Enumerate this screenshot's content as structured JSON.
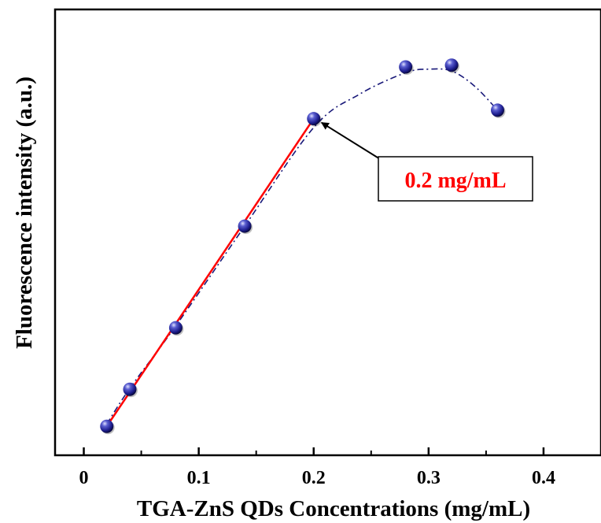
{
  "chart_data": {
    "type": "scatter",
    "title": "",
    "xlabel": "TGA-ZnS QDs Concentrations (mg/mL)",
    "ylabel": "Fluorescence intensity (a.u.)",
    "xlim": [
      -0.025,
      0.45
    ],
    "ylim": [
      0,
      1
    ],
    "x_ticks": [
      {
        "value": 0,
        "label": "0"
      },
      {
        "value": 0.1,
        "label": "0.1"
      },
      {
        "value": 0.2,
        "label": "0.2"
      },
      {
        "value": 0.3,
        "label": "0.3"
      },
      {
        "value": 0.4,
        "label": "0.4"
      }
    ],
    "y_tick_labels_shown": false,
    "grid": false,
    "points": [
      {
        "x": 0.02,
        "y": 0.065
      },
      {
        "x": 0.04,
        "y": 0.148
      },
      {
        "x": 0.08,
        "y": 0.286
      },
      {
        "x": 0.14,
        "y": 0.514
      },
      {
        "x": 0.2,
        "y": 0.755
      },
      {
        "x": 0.28,
        "y": 0.871
      },
      {
        "x": 0.32,
        "y": 0.875
      },
      {
        "x": 0.36,
        "y": 0.774
      }
    ],
    "linear_fit": {
      "x": [
        0.02,
        0.2
      ],
      "y": [
        0.065,
        0.755
      ],
      "color": "#ff0000"
    },
    "trend_curve": {
      "style": "dash-dot",
      "color": "#1a1a7a",
      "x": [
        0.02,
        0.04,
        0.08,
        0.14,
        0.2,
        0.24,
        0.28,
        0.3,
        0.32,
        0.34,
        0.36
      ],
      "y": [
        0.07,
        0.15,
        0.29,
        0.514,
        0.735,
        0.81,
        0.858,
        0.866,
        0.862,
        0.828,
        0.774
      ]
    },
    "annotation": {
      "text": "0.2 mg/mL",
      "color": "#ff0000",
      "box_border": "#000000",
      "arrow_target": {
        "x": 0.2,
        "y": 0.755
      }
    },
    "colors": {
      "marker": "#1c1c8c",
      "marker_highlight": "#9ea0e8",
      "axis": "#000000"
    }
  }
}
